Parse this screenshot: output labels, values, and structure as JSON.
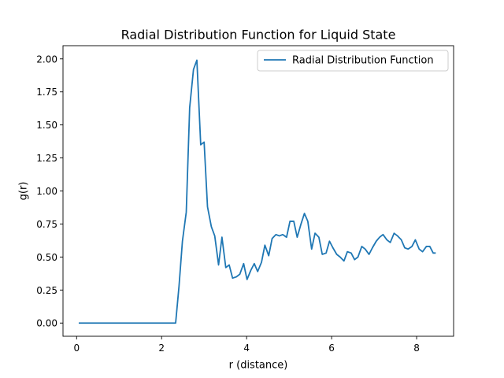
{
  "chart_data": {
    "type": "line",
    "title": "Radial Distribution Function for Liquid State",
    "xlabel": "r (distance)",
    "ylabel": "g(r)",
    "xlim": [
      -0.32,
      8.87
    ],
    "ylim": [
      -0.1,
      2.1
    ],
    "x_ticks": [
      {
        "value": 0,
        "label": "0"
      },
      {
        "value": 2,
        "label": "2"
      },
      {
        "value": 4,
        "label": "4"
      },
      {
        "value": 6,
        "label": "6"
      },
      {
        "value": 8,
        "label": "8"
      }
    ],
    "y_ticks": [
      {
        "value": 0.0,
        "label": "0.00"
      },
      {
        "value": 0.25,
        "label": "0.25"
      },
      {
        "value": 0.5,
        "label": "0.50"
      },
      {
        "value": 0.75,
        "label": "0.75"
      },
      {
        "value": 1.0,
        "label": "1.00"
      },
      {
        "value": 1.25,
        "label": "1.25"
      },
      {
        "value": 1.5,
        "label": "1.50"
      },
      {
        "value": 1.75,
        "label": "1.75"
      },
      {
        "value": 2.0,
        "label": "2.00"
      }
    ],
    "grid": false,
    "legend_position": "top-right",
    "series": [
      {
        "name": "Radial Distribution Function",
        "color": "#1f77b4",
        "x": [
          0.05,
          0.13,
          0.22,
          0.3,
          0.39,
          0.47,
          0.55,
          0.64,
          0.72,
          0.81,
          0.89,
          0.98,
          1.06,
          1.14,
          1.23,
          1.31,
          1.4,
          1.48,
          1.57,
          1.65,
          1.73,
          1.82,
          1.9,
          1.99,
          2.07,
          2.16,
          2.24,
          2.33,
          2.41,
          2.49,
          2.58,
          2.66,
          2.75,
          2.83,
          2.92,
          3.0,
          3.08,
          3.17,
          3.25,
          3.34,
          3.42,
          3.51,
          3.59,
          3.67,
          3.76,
          3.84,
          3.93,
          4.01,
          4.1,
          4.18,
          4.26,
          4.35,
          4.43,
          4.52,
          4.6,
          4.69,
          4.77,
          4.85,
          4.94,
          5.02,
          5.11,
          5.19,
          5.28,
          5.36,
          5.44,
          5.53,
          5.61,
          5.7,
          5.78,
          5.87,
          5.95,
          6.03,
          6.12,
          6.2,
          6.29,
          6.37,
          6.46,
          6.54,
          6.62,
          6.71,
          6.79,
          6.88,
          6.96,
          7.05,
          7.13,
          7.21,
          7.3,
          7.38,
          7.47,
          7.55,
          7.64,
          7.72,
          7.8,
          7.89,
          7.97,
          8.06,
          8.14,
          8.23,
          8.31,
          8.39,
          8.45
        ],
        "y": [
          0.0,
          0.0,
          0.0,
          0.0,
          0.0,
          0.0,
          0.0,
          0.0,
          0.0,
          0.0,
          0.0,
          0.0,
          0.0,
          0.0,
          0.0,
          0.0,
          0.0,
          0.0,
          0.0,
          0.0,
          0.0,
          0.0,
          0.0,
          0.0,
          0.0,
          0.0,
          0.0,
          0.0,
          0.28,
          0.62,
          0.84,
          1.63,
          1.92,
          1.99,
          1.35,
          1.37,
          0.88,
          0.73,
          0.66,
          0.44,
          0.65,
          0.42,
          0.44,
          0.34,
          0.35,
          0.37,
          0.45,
          0.33,
          0.4,
          0.45,
          0.39,
          0.46,
          0.59,
          0.51,
          0.64,
          0.67,
          0.66,
          0.67,
          0.65,
          0.77,
          0.77,
          0.65,
          0.75,
          0.83,
          0.77,
          0.56,
          0.68,
          0.65,
          0.52,
          0.53,
          0.62,
          0.57,
          0.52,
          0.5,
          0.47,
          0.54,
          0.53,
          0.48,
          0.5,
          0.58,
          0.56,
          0.52,
          0.57,
          0.62,
          0.65,
          0.67,
          0.63,
          0.61,
          0.68,
          0.66,
          0.63,
          0.57,
          0.56,
          0.58,
          0.63,
          0.56,
          0.54,
          0.58,
          0.58,
          0.53,
          0.53
        ]
      }
    ]
  }
}
